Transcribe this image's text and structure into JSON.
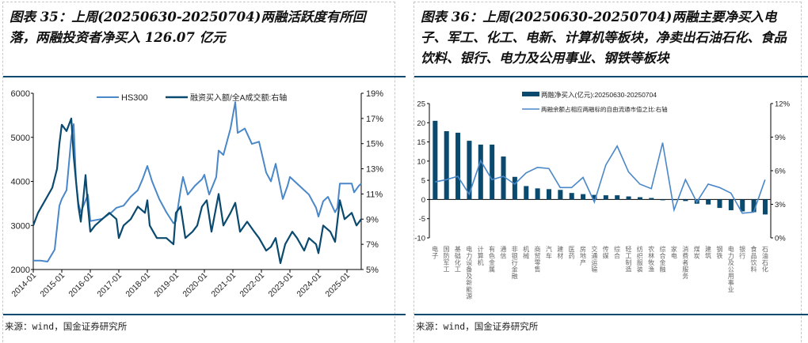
{
  "left": {
    "title": "图表 35：上周(20250630-20250704)两融活跃度有所回落，两融投资者净买入 126.07 亿元",
    "source": "来源：wind，国金证券研究所"
  },
  "right": {
    "title": "图表 36：上周(20250630-20250704)两融主要净买入电子、军工、化工、电新、计算机等板块，净卖出石油石化、食品饮料、银行、电力及公用事业、钢铁等板块",
    "source": "来源：wind，国金证券研究所"
  },
  "chart_data": [
    {
      "type": "line",
      "x_ticks": [
        "2014-01",
        "2015-01",
        "2016-01",
        "2017-01",
        "2018-01",
        "2019-01",
        "2020-01",
        "2021-01",
        "2022-01",
        "2023-01",
        "2024-01",
        "2025-01"
      ],
      "ylim_left": [
        2000,
        6000
      ],
      "yticks_left": [
        "2000",
        "3000",
        "4000",
        "5000",
        "6000"
      ],
      "ylim_right": [
        5,
        19
      ],
      "yticks_right": [
        "5%",
        "7%",
        "9%",
        "11%",
        "13%",
        "15%",
        "17%",
        "19%"
      ],
      "legend_placement": "top",
      "colors": {
        "HS300": "#4a87c9",
        "ratio": "#0b4a6f"
      },
      "series": [
        {
          "name": "HS300",
          "axis": "left",
          "points": [
            [
              "2014-01",
              2200
            ],
            [
              "2014-04",
              2200
            ],
            [
              "2014-07",
              2180
            ],
            [
              "2014-10",
              2450
            ],
            [
              "2014-12",
              3450
            ],
            [
              "2015-01",
              3600
            ],
            [
              "2015-03",
              3800
            ],
            [
              "2015-05",
              5000
            ],
            [
              "2015-06",
              5300
            ],
            [
              "2015-07",
              4000
            ],
            [
              "2015-08",
              3500
            ],
            [
              "2015-09",
              3300
            ],
            [
              "2015-12",
              3700
            ],
            [
              "2016-01",
              3100
            ],
            [
              "2016-06",
              3150
            ],
            [
              "2016-10",
              3300
            ],
            [
              "2016-12",
              3400
            ],
            [
              "2017-03",
              3450
            ],
            [
              "2017-06",
              3650
            ],
            [
              "2017-09",
              3800
            ],
            [
              "2017-11",
              4050
            ],
            [
              "2018-01",
              4350
            ],
            [
              "2018-03",
              4000
            ],
            [
              "2018-06",
              3600
            ],
            [
              "2018-09",
              3300
            ],
            [
              "2018-12",
              3050
            ],
            [
              "2019-01",
              3100
            ],
            [
              "2019-03",
              3800
            ],
            [
              "2019-04",
              4100
            ],
            [
              "2019-06",
              3700
            ],
            [
              "2019-09",
              3900
            ],
            [
              "2019-12",
              4050
            ],
            [
              "2020-01",
              4150
            ],
            [
              "2020-03",
              3700
            ],
            [
              "2020-06",
              4100
            ],
            [
              "2020-07",
              4700
            ],
            [
              "2020-09",
              4600
            ],
            [
              "2020-12",
              5200
            ],
            [
              "2021-02",
              5800
            ],
            [
              "2021-03",
              5100
            ],
            [
              "2021-06",
              5200
            ],
            [
              "2021-09",
              4850
            ],
            [
              "2021-12",
              4900
            ],
            [
              "2022-03",
              4200
            ],
            [
              "2022-05",
              4000
            ],
            [
              "2022-07",
              4400
            ],
            [
              "2022-10",
              3600
            ],
            [
              "2022-12",
              3900
            ],
            [
              "2023-01",
              4100
            ],
            [
              "2023-06",
              3850
            ],
            [
              "2023-09",
              3700
            ],
            [
              "2023-12",
              3400
            ],
            [
              "2024-01",
              3200
            ],
            [
              "2024-03",
              3550
            ],
            [
              "2024-05",
              3650
            ],
            [
              "2024-08",
              3300
            ],
            [
              "2024-09",
              3400
            ],
            [
              "2024-10",
              3950
            ],
            [
              "2024-12",
              3950
            ],
            [
              "2025-03",
              3950
            ],
            [
              "2025-04",
              3750
            ],
            [
              "2025-06",
              3900
            ],
            [
              "2025-07",
              3950
            ]
          ]
        },
        {
          "name": "融资买入额/全A成交额:右轴",
          "axis": "right",
          "points": [
            [
              "2014-01",
              8.5
            ],
            [
              "2014-03",
              9.5
            ],
            [
              "2014-06",
              10.5
            ],
            [
              "2014-09",
              11.5
            ],
            [
              "2014-11",
              13
            ],
            [
              "2014-12",
              15
            ],
            [
              "2015-01",
              16.5
            ],
            [
              "2015-03",
              16
            ],
            [
              "2015-05",
              17
            ],
            [
              "2015-06",
              14
            ],
            [
              "2015-08",
              10
            ],
            [
              "2015-09",
              8.8
            ],
            [
              "2015-10",
              10.5
            ],
            [
              "2015-11",
              12.5
            ],
            [
              "2015-12",
              10
            ],
            [
              "2016-01",
              8
            ],
            [
              "2016-03",
              8.5
            ],
            [
              "2016-06",
              9
            ],
            [
              "2016-09",
              9.5
            ],
            [
              "2016-12",
              9
            ],
            [
              "2017-01",
              7.5
            ],
            [
              "2017-03",
              8.5
            ],
            [
              "2017-06",
              9
            ],
            [
              "2017-09",
              10
            ],
            [
              "2017-12",
              9.5
            ],
            [
              "2018-01",
              10.5
            ],
            [
              "2018-02",
              8.5
            ],
            [
              "2018-05",
              7.5
            ],
            [
              "2018-09",
              7.5
            ],
            [
              "2018-12",
              7
            ],
            [
              "2019-01",
              9.5
            ],
            [
              "2019-03",
              10
            ],
            [
              "2019-05",
              7.5
            ],
            [
              "2019-08",
              8
            ],
            [
              "2019-10",
              8.5
            ],
            [
              "2019-12",
              10
            ],
            [
              "2020-02",
              10.5
            ],
            [
              "2020-04",
              8
            ],
            [
              "2020-07",
              11
            ],
            [
              "2020-09",
              8.5
            ],
            [
              "2020-12",
              9.5
            ],
            [
              "2021-02",
              10.3
            ],
            [
              "2021-04",
              8
            ],
            [
              "2021-07",
              8.8
            ],
            [
              "2021-10",
              8
            ],
            [
              "2021-12",
              7.5
            ],
            [
              "2022-03",
              6.5
            ],
            [
              "2022-05",
              6.8
            ],
            [
              "2022-07",
              7.5
            ],
            [
              "2022-09",
              5.5
            ],
            [
              "2022-11",
              7
            ],
            [
              "2023-02",
              8
            ],
            [
              "2023-04",
              7.5
            ],
            [
              "2023-07",
              6.5
            ],
            [
              "2023-09",
              7.5
            ],
            [
              "2023-12",
              7
            ],
            [
              "2024-01",
              6.3
            ],
            [
              "2024-03",
              8.5
            ],
            [
              "2024-06",
              8
            ],
            [
              "2024-08",
              7.2
            ],
            [
              "2024-10",
              10.5
            ],
            [
              "2024-12",
              9
            ],
            [
              "2025-03",
              9.5
            ],
            [
              "2025-05",
              8.5
            ],
            [
              "2025-07",
              9
            ]
          ]
        }
      ]
    },
    {
      "type": "bar+line",
      "categories": [
        "电子",
        "国防军工",
        "基础化工",
        "电力设备及新能源",
        "计算机",
        "有色金属",
        "通信",
        "非银行金融",
        "机械",
        "商贸零售",
        "汽车",
        "建材",
        "医药",
        "房地产",
        "交通运输",
        "传媒",
        "综合",
        "轻工制造",
        "纺织服装",
        "农林牧渔",
        "综合金融",
        "家电",
        "消费者服务",
        "煤炭",
        "建筑",
        "钢铁",
        "电力及公用事业",
        "银行",
        "食品饮料",
        "石油石化"
      ],
      "ylim_left": [
        -10,
        25
      ],
      "yticks_left": [
        "-10",
        "-5",
        "0",
        "5",
        "10",
        "15",
        "20",
        "25"
      ],
      "ylim_right": [
        0,
        12
      ],
      "yticks_right": [
        "0%",
        "3%",
        "6%",
        "9%",
        "12%"
      ],
      "legend_placement": "top",
      "colors": {
        "bar": "#0b4a6f",
        "line": "#4a87c9"
      },
      "series": [
        {
          "name": "两融净买入(亿元):20250630-20250704",
          "kind": "bar",
          "axis": "left",
          "values": [
            20.5,
            17.8,
            17.4,
            15.3,
            14.3,
            14.3,
            11.2,
            5.9,
            3.5,
            2.9,
            2.7,
            2.5,
            1.7,
            1.4,
            1.2,
            1.1,
            1.1,
            0.8,
            0.6,
            0.4,
            -0.2,
            -0.1,
            -0.4,
            -1.1,
            -1.3,
            -2.2,
            -2.8,
            -3.1,
            -3.3,
            -3.9
          ]
        },
        {
          "name": "两融余额占相应两融标的自由流通市值之比:右轴",
          "kind": "line",
          "axis": "right",
          "values": [
            5.0,
            5.2,
            5.5,
            3.9,
            6.9,
            5.2,
            5.5,
            4.8,
            5.8,
            6.3,
            6.2,
            4.5,
            4.5,
            5.4,
            3.2,
            6.5,
            8.2,
            5.9,
            4.8,
            4.4,
            8.5,
            2.5,
            5.2,
            3.2,
            4.8,
            4.5,
            4.0,
            2.2,
            2.3,
            5.2
          ]
        }
      ]
    }
  ]
}
